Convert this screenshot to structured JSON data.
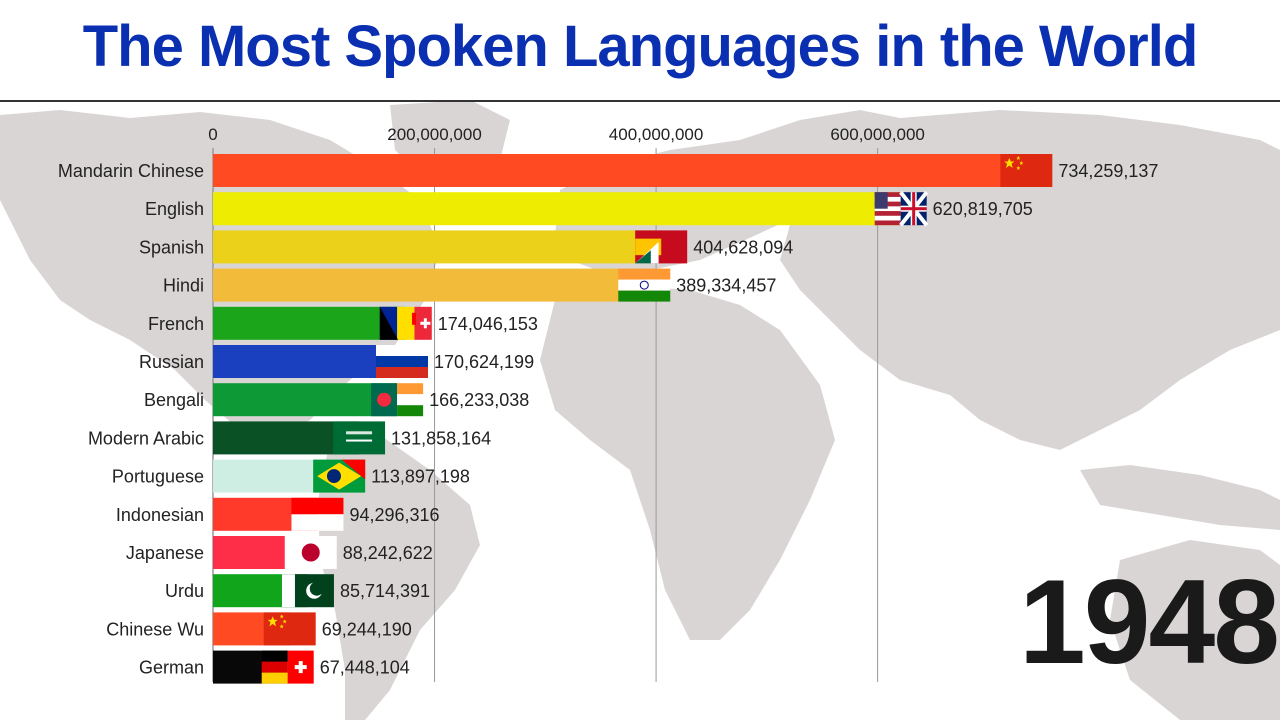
{
  "title": "The Most Spoken Languages in the World",
  "year": "1948",
  "colors": {
    "title": "#0a2fb0",
    "grid": "#999999"
  },
  "chart_data": {
    "type": "bar",
    "orientation": "horizontal",
    "xlim": [
      0,
      780000000
    ],
    "xticks": [
      0,
      200000000,
      400000000,
      600000000
    ],
    "xtick_labels": [
      "0",
      "200,000,000",
      "400,000,000",
      "600,000,000"
    ],
    "categories": [
      "Mandarin Chinese",
      "English",
      "Spanish",
      "Hindi",
      "French",
      "Russian",
      "Bengali",
      "Modern Arabic",
      "Portuguese",
      "Indonesian",
      "Japanese",
      "Urdu",
      "Chinese Wu",
      "German"
    ],
    "values": [
      734259137,
      620819705,
      404628094,
      389334457,
      174046153,
      170624199,
      166233038,
      131858164,
      113897198,
      94296316,
      88242622,
      85714391,
      69244190,
      67448104
    ],
    "value_labels": [
      "734,259,137",
      "620,819,705",
      "404,628,094",
      "389,334,457",
      "174,046,153",
      "170,624,199",
      "166,233,038",
      "131,858,164",
      "113,897,198",
      "94,296,316",
      "88,242,622",
      "85,714,391",
      "69,244,190",
      "67,448,104"
    ],
    "bar_colors": [
      "#ff4a22",
      "#eeec00",
      "#ecd11b",
      "#f2bc3a",
      "#1aa51a",
      "#1a3fbf",
      "#0d9a36",
      "#0a5225",
      "#cfeee3",
      "#ff3a2a",
      "#ff2e48",
      "#11a51b",
      "#ff4a22",
      "#080808"
    ],
    "flags": [
      "china",
      "usa-uk",
      "spain-mix",
      "india",
      "france-canada-swiss",
      "russia",
      "bangladesh-india",
      "saudi-arabia",
      "brazil-portugal",
      "indonesia",
      "japan",
      "pakistan",
      "china",
      "germany-swiss"
    ],
    "grid": true
  }
}
